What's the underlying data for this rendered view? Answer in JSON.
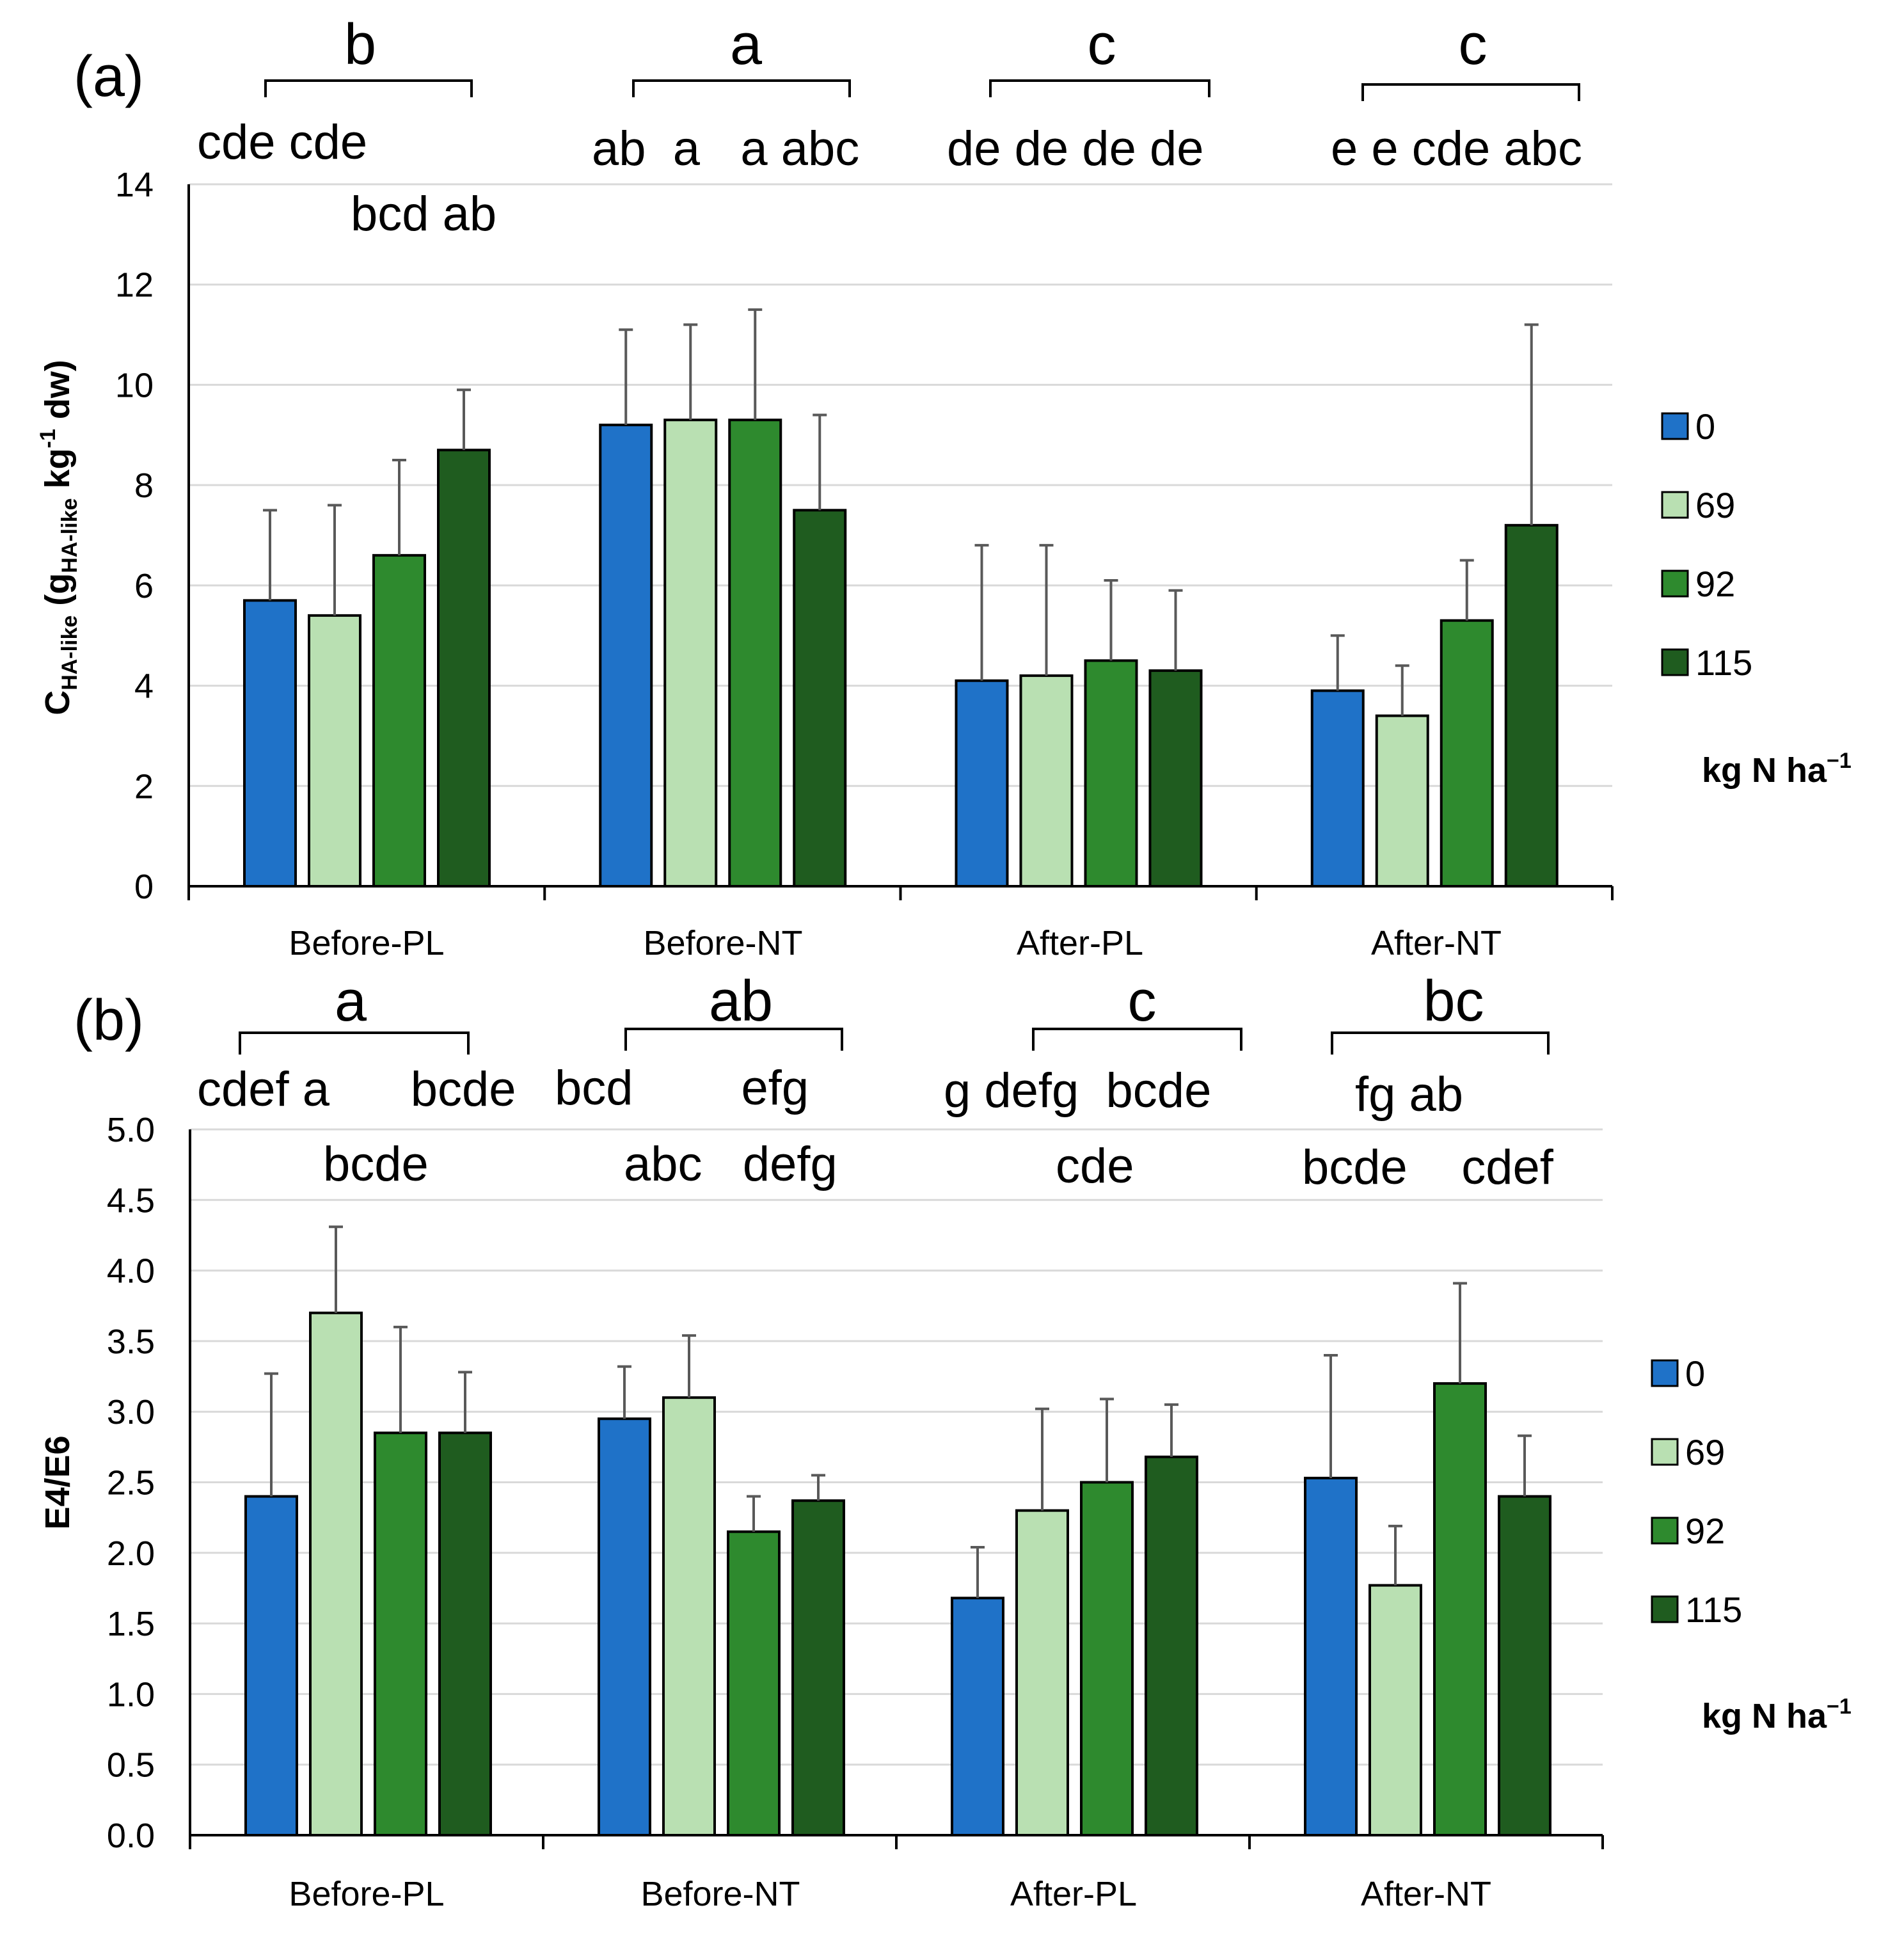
{
  "colors": {
    "c0": "#1f72c8",
    "c69": "#b9e0b2",
    "c92": "#2e8a2e",
    "c115": "#1f5c1f",
    "grid": "#d9d9d9",
    "error": "#595959"
  },
  "legend": {
    "items": [
      {
        "label": "0",
        "color": "#1f72c8"
      },
      {
        "label": "69",
        "color": "#b9e0b2"
      },
      {
        "label": "92",
        "color": "#2e8a2e"
      },
      {
        "label": "115",
        "color": "#1f5c1f"
      }
    ],
    "title_main": "kg N ha",
    "title_sup": "−1"
  },
  "chart_data": [
    {
      "type": "bar",
      "panel": "(a)",
      "categories": [
        "Before-PL",
        "Before-NT",
        "After-PL",
        "After-NT"
      ],
      "series_names": [
        "0",
        "69",
        "92",
        "115"
      ],
      "values": [
        [
          5.7,
          5.4,
          6.6,
          8.7
        ],
        [
          9.2,
          9.3,
          9.3,
          7.5
        ],
        [
          4.1,
          4.2,
          4.5,
          4.3
        ],
        [
          3.9,
          3.4,
          5.3,
          7.2
        ]
      ],
      "errors_upper": [
        [
          7.5,
          7.6,
          8.5,
          9.9
        ],
        [
          11.1,
          11.2,
          11.5,
          9.4
        ],
        [
          6.8,
          6.8,
          6.1,
          5.9
        ],
        [
          5.0,
          4.4,
          6.5,
          11.2
        ]
      ],
      "ylim": [
        0,
        14
      ],
      "yticks": [
        "0",
        "2",
        "4",
        "6",
        "8",
        "10",
        "12",
        "14"
      ],
      "ylabel": {
        "main": "C",
        "sub": "HA-like",
        "open": " (g",
        "sub2": "HA-like",
        "mid": " kg",
        "sup": "-1",
        "end": " dw)"
      },
      "group_letters": [
        "b",
        "a",
        "c",
        "c"
      ],
      "bar_letters_row1": [
        "cde cde",
        "ab  a   a abc",
        "de de de de",
        "e e cde abc"
      ],
      "bar_letters_row2": [
        "bcd ab",
        "",
        "",
        ""
      ]
    },
    {
      "type": "bar",
      "panel": "(b)",
      "categories": [
        "Before-PL",
        "Before-NT",
        "After-PL",
        "After-NT"
      ],
      "series_names": [
        "0",
        "69",
        "92",
        "115"
      ],
      "values": [
        [
          2.4,
          3.7,
          2.85,
          2.85
        ],
        [
          2.95,
          3.1,
          2.15,
          2.37
        ],
        [
          1.68,
          2.3,
          2.5,
          2.68
        ],
        [
          2.53,
          1.77,
          3.2,
          2.4
        ]
      ],
      "errors_upper": [
        [
          3.27,
          4.31,
          3.6,
          3.28
        ],
        [
          3.32,
          3.54,
          2.4,
          2.55
        ],
        [
          2.04,
          3.02,
          3.09,
          3.05
        ],
        [
          3.4,
          2.19,
          3.91,
          2.83
        ]
      ],
      "ylim": [
        0,
        5
      ],
      "yticks": [
        "0.0",
        "0.5",
        "1.0",
        "1.5",
        "2.0",
        "2.5",
        "3.0",
        "3.5",
        "4.0",
        "4.5",
        "5.0"
      ],
      "ylabel": {
        "main": "E4/E6"
      },
      "group_letters": [
        "a",
        "ab",
        "c",
        "bc"
      ],
      "bar_letters_row1": [
        "cdef a      bcde",
        "bcd        efg",
        "g defg  bcde",
        "fg ab"
      ],
      "bar_letters_row2": [
        "bcde",
        "abc   defg",
        "cde",
        "bcde    cdef"
      ]
    }
  ]
}
